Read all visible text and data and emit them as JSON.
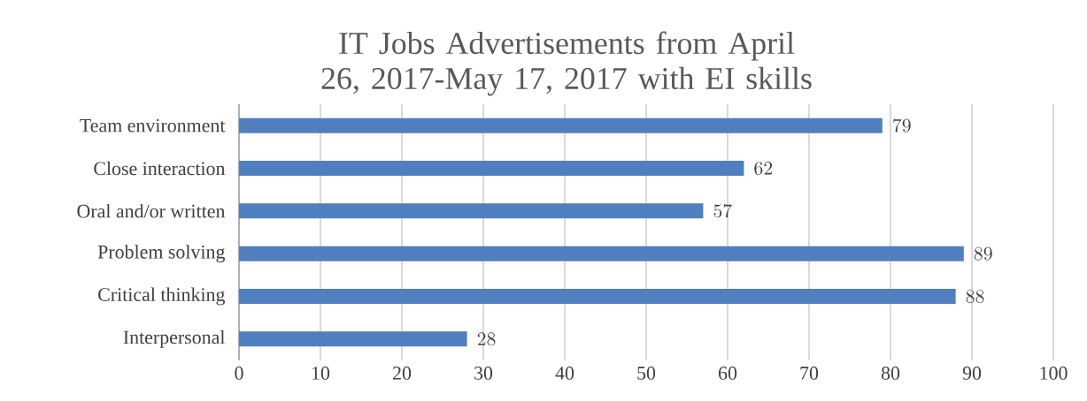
{
  "chart_data": {
    "type": "bar",
    "orientation": "horizontal",
    "title": "IT Jobs Advertisements from April 26, 2017-May 17, 2017 with EI skills",
    "categories": [
      "Team environment",
      "Close interaction",
      "Oral and/or written",
      "Problem solving",
      "Critical thinking",
      "Interpersonal"
    ],
    "values": [
      79,
      62,
      57,
      89,
      88,
      28
    ],
    "color": "#4f7fbe",
    "xlim": [
      0,
      100
    ],
    "xticks": [
      0,
      10,
      20,
      30,
      40,
      50,
      60,
      70,
      80,
      90,
      100
    ],
    "grid": "x",
    "data_labels": true
  }
}
